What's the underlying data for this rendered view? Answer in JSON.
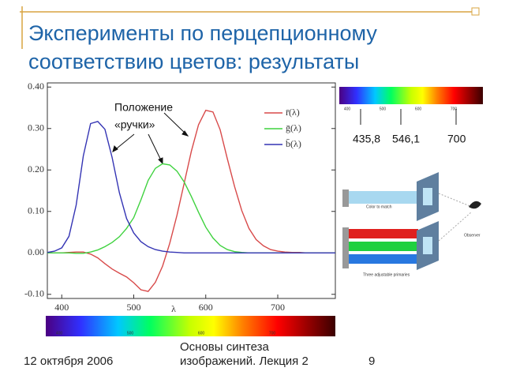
{
  "slide": {
    "title_lines": [
      "Эксперименты по перцепционному",
      "соответствию цветов: результаты"
    ],
    "annotation_lines": [
      "Положение",
      "«ручки»"
    ],
    "spectrum_top_ticks": [
      "400",
      "500",
      "600",
      "700"
    ],
    "primary_labels": [
      "435,8",
      "546,1",
      "700"
    ],
    "diagram": {
      "color_to_match": "Color to match",
      "observer": "Observer",
      "primaries": "Three adjustable primaries"
    },
    "spectrum_bottom_ticks": [
      "400",
      "500",
      "600",
      "700"
    ],
    "footer": {
      "date": "12 октября 2006",
      "course_lines": [
        "Основы синтеза",
        "изображений. Лекция 2"
      ],
      "page": "9"
    }
  },
  "chart_data": {
    "type": "line",
    "xlabel": "λ",
    "x": [
      380,
      390,
      400,
      410,
      420,
      430,
      440,
      450,
      460,
      470,
      480,
      490,
      500,
      510,
      520,
      530,
      540,
      550,
      560,
      570,
      580,
      590,
      600,
      610,
      620,
      630,
      640,
      650,
      660,
      670,
      680,
      690,
      700,
      710,
      720,
      730,
      740,
      750,
      760,
      770,
      780
    ],
    "series": [
      {
        "name": "r̄(λ)",
        "color": "#d84a4a",
        "values": [
          0,
          0,
          0,
          0.001,
          0.002,
          0.002,
          -0.003,
          -0.012,
          -0.026,
          -0.039,
          -0.049,
          -0.058,
          -0.072,
          -0.089,
          -0.093,
          -0.071,
          -0.032,
          0.023,
          0.091,
          0.168,
          0.245,
          0.309,
          0.344,
          0.34,
          0.297,
          0.227,
          0.16,
          0.102,
          0.059,
          0.032,
          0.017,
          0.008,
          0.004,
          0.002,
          0.001,
          0.001,
          0,
          0,
          0,
          0,
          0
        ]
      },
      {
        "name": "ḡ(λ)",
        "color": "#3fd23f",
        "values": [
          0,
          0,
          0,
          0,
          -0.001,
          -0.001,
          0.002,
          0.007,
          0.015,
          0.025,
          0.039,
          0.059,
          0.085,
          0.128,
          0.175,
          0.204,
          0.215,
          0.212,
          0.197,
          0.171,
          0.136,
          0.098,
          0.062,
          0.036,
          0.018,
          0.008,
          0.003,
          0.001,
          0,
          0,
          0,
          0,
          0,
          0,
          0,
          0,
          0,
          0,
          0,
          0,
          0
        ]
      },
      {
        "name": "b̄(λ)",
        "color": "#3434b4",
        "values": [
          0.001,
          0.004,
          0.012,
          0.04,
          0.115,
          0.234,
          0.312,
          0.317,
          0.298,
          0.23,
          0.145,
          0.083,
          0.048,
          0.027,
          0.015,
          0.008,
          0.004,
          0.002,
          0.001,
          0,
          0,
          0,
          0,
          0,
          0,
          0,
          0,
          0,
          0,
          0,
          0,
          0,
          0,
          0,
          0,
          0,
          0,
          0,
          0,
          0,
          0
        ]
      }
    ],
    "xlim": [
      380,
      780
    ],
    "ylim": [
      -0.11,
      0.41
    ],
    "xticks": [
      400,
      500,
      600,
      700
    ],
    "yticks": [
      {
        "value": 0.4,
        "label": "0.40"
      },
      {
        "value": 0.3,
        "label": "0.30"
      },
      {
        "value": 0.2,
        "label": "0.20"
      },
      {
        "value": 0.1,
        "label": "0.10"
      },
      {
        "value": 0,
        "label": "0.00"
      },
      {
        "value": -0.1,
        "label": "-0.10"
      }
    ],
    "legend": "upper right"
  }
}
